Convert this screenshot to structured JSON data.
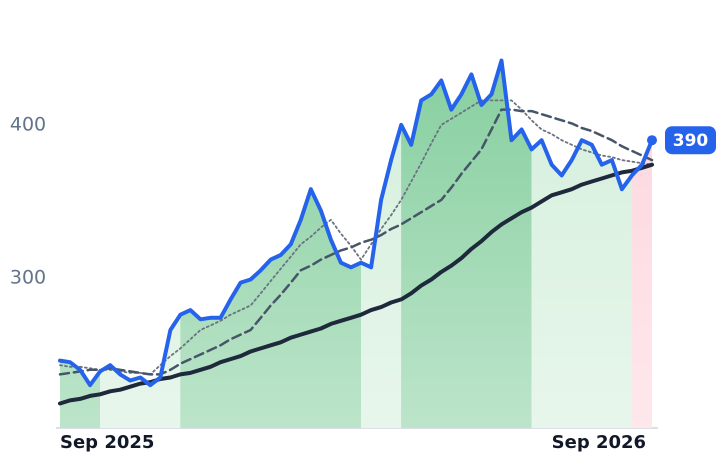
{
  "chart_data": {
    "type": "line",
    "categories": [
      "Sep 2025",
      null,
      null,
      null,
      null,
      null,
      null,
      null,
      null,
      null,
      null,
      null,
      null,
      null,
      null,
      null,
      null,
      null,
      null,
      null,
      null,
      null,
      null,
      null,
      null,
      null,
      null,
      null,
      null,
      null,
      null,
      null,
      null,
      null,
      null,
      null,
      null,
      null,
      null,
      null,
      null,
      null,
      null,
      null,
      null,
      null,
      null,
      null,
      null,
      "Sep 2026",
      null,
      null,
      null,
      null,
      null,
      null,
      null,
      null,
      null,
      null
    ],
    "series": [
      {
        "color": "#2563eb",
        "style": "solid",
        "width": 4,
        "values": [
          246,
          245,
          240,
          230,
          239,
          243,
          237,
          233,
          235,
          230,
          235,
          266,
          276,
          279,
          273,
          274,
          274,
          286,
          297,
          299,
          305,
          312,
          315,
          322,
          338,
          358,
          344,
          325,
          310,
          307,
          310,
          307,
          351,
          377,
          400,
          387,
          416,
          420,
          429,
          410,
          420,
          433,
          413,
          420,
          442,
          390,
          397,
          384,
          390,
          374,
          367,
          377,
          390,
          387,
          374,
          377,
          358,
          367,
          374,
          390
        ]
      },
      {
        "color": "#1e293b",
        "style": "solid",
        "width": 4,
        "values": [
          218,
          220,
          221,
          223,
          224,
          226,
          227,
          229,
          231,
          232,
          234,
          235,
          237,
          238,
          240,
          242,
          245,
          247,
          249,
          252,
          254,
          256,
          258,
          261,
          263,
          265,
          267,
          270,
          272,
          274,
          276,
          279,
          281,
          284,
          286,
          290,
          295,
          299,
          304,
          308,
          313,
          319,
          324,
          330,
          335,
          339,
          343,
          346,
          350,
          354,
          356,
          358,
          361,
          363,
          365,
          367,
          369,
          370,
          372,
          374
        ]
      },
      {
        "color": "#475569",
        "style": "dashed",
        "width": 2.5,
        "values": [
          237,
          238,
          239,
          240,
          240,
          241,
          240,
          239,
          238,
          237,
          237,
          240,
          244,
          247,
          250,
          253,
          256,
          260,
          263,
          266,
          274,
          282,
          289,
          297,
          305,
          308,
          312,
          315,
          318,
          320,
          323,
          325,
          328,
          332,
          335,
          339,
          343,
          347,
          351,
          359,
          368,
          376,
          384,
          397,
          410,
          410,
          409,
          409,
          407,
          405,
          403,
          401,
          398,
          396,
          393,
          390,
          386,
          383,
          380,
          377
        ]
      },
      {
        "color": "#6b7280",
        "style": "dotted",
        "width": 1.8,
        "values": [
          243,
          242,
          242,
          241,
          240,
          240,
          239,
          238,
          238,
          237,
          243,
          249,
          254,
          260,
          266,
          269,
          272,
          276,
          279,
          282,
          290,
          298,
          306,
          314,
          322,
          327,
          333,
          338,
          329,
          321,
          312,
          322,
          332,
          341,
          351,
          363,
          375,
          388,
          400,
          404,
          408,
          412,
          416,
          416,
          416,
          416,
          410,
          403,
          397,
          394,
          390,
          387,
          384,
          382,
          380,
          379,
          377,
          376,
          375,
          374
        ]
      }
    ],
    "bands": [
      {
        "start": 0,
        "end": 4,
        "color": "#86cf9f"
      },
      {
        "start": 4,
        "end": 12,
        "color": "#d4efdc"
      },
      {
        "start": 12,
        "end": 30,
        "color": "#86cf9f"
      },
      {
        "start": 30,
        "end": 34,
        "color": "#d4efdc"
      },
      {
        "start": 34,
        "end": 47,
        "color": "#86cf9f"
      },
      {
        "start": 47,
        "end": 57,
        "color": "#d4efdc"
      },
      {
        "start": 57,
        "end": 59,
        "color": "#fdd5dd"
      }
    ],
    "ylim": [
      202,
      462
    ],
    "yticks": [
      300,
      400
    ]
  }
}
